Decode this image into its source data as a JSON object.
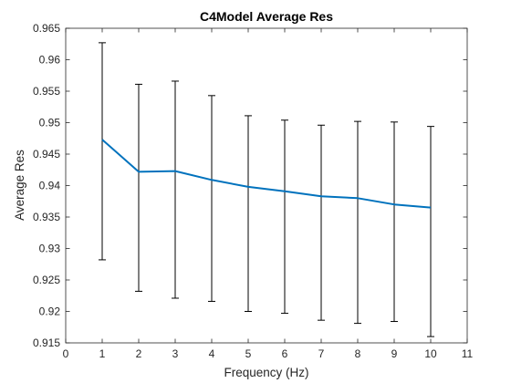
{
  "chart_data": {
    "type": "line",
    "title": "C4Model Average Res",
    "xlabel": "Frequency (Hz)",
    "ylabel": "Average Res",
    "xlim": [
      0,
      11
    ],
    "ylim": [
      0.915,
      0.965
    ],
    "xticks": [
      "0",
      "1",
      "2",
      "3",
      "4",
      "5",
      "6",
      "7",
      "8",
      "9",
      "10",
      "11"
    ],
    "yticks": [
      "0.915",
      "0.92",
      "0.925",
      "0.93",
      "0.935",
      "0.94",
      "0.945",
      "0.95",
      "0.955",
      "0.96",
      "0.965"
    ],
    "grid": false,
    "series": [
      {
        "color": "#0072BD",
        "x": [
          1,
          2,
          3,
          4,
          5,
          6,
          7,
          8,
          9,
          10
        ],
        "values": [
          0.9473,
          0.9422,
          0.9423,
          0.9409,
          0.9398,
          0.9391,
          0.9383,
          0.938,
          0.937,
          0.9365
        ],
        "error_upper": [
          0.9627,
          0.9561,
          0.9566,
          0.9543,
          0.9511,
          0.9504,
          0.9496,
          0.9502,
          0.9501,
          0.9494
        ],
        "error_lower": [
          0.9282,
          0.9232,
          0.9221,
          0.9216,
          0.92,
          0.9197,
          0.9186,
          0.9181,
          0.9184,
          0.916
        ]
      }
    ],
    "errorbar_color": "#000000"
  }
}
